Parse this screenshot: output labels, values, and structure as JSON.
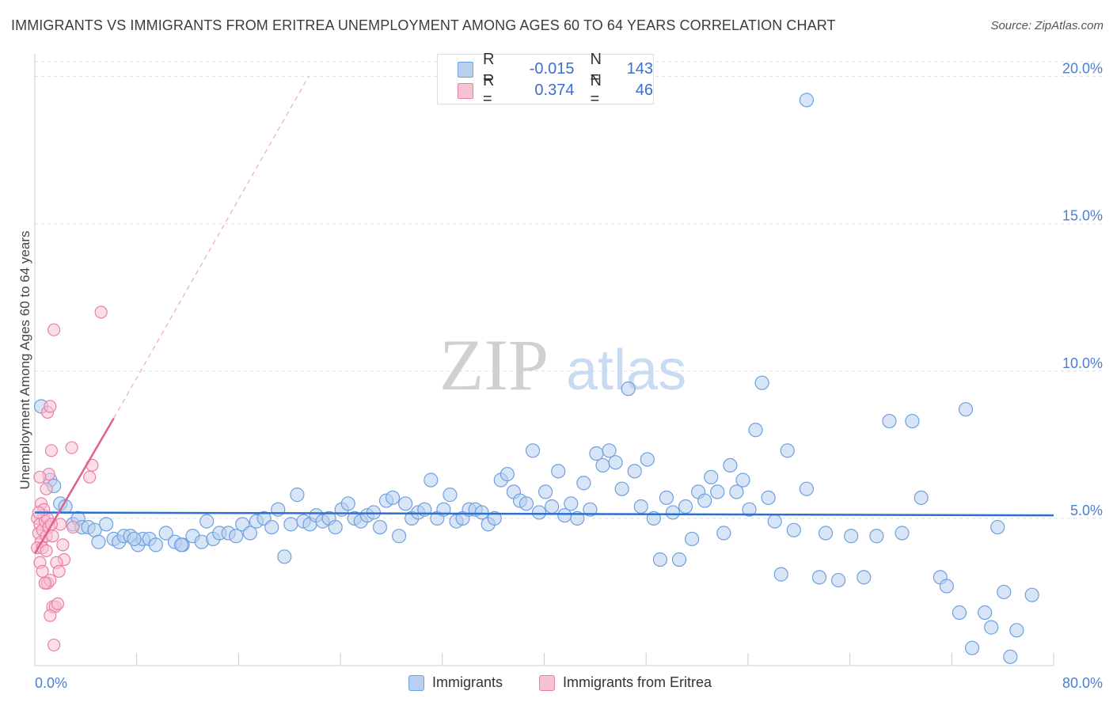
{
  "title": "IMMIGRANTS VS IMMIGRANTS FROM ERITREA UNEMPLOYMENT AMONG AGES 60 TO 64 YEARS CORRELATION CHART",
  "source": "Source: ZipAtlas.com",
  "watermark": {
    "zip": "ZIP",
    "atlas": "atlas"
  },
  "legend": {
    "r_label": "R =",
    "n_label": "N =",
    "series1": {
      "r": "-0.015",
      "n": "143"
    },
    "series2": {
      "r": "0.374",
      "n": "46"
    }
  },
  "bottom_legend": {
    "series1": "Immigrants",
    "series2": "Immigrants from Eritrea"
  },
  "colors": {
    "blue": "#6fa0e0",
    "blue_fill": "#b8d0f0",
    "blue_line": "#2f6fcf",
    "pink": "#ea7fa5",
    "pink_fill": "#f7c3d4",
    "pink_line": "#e0608e",
    "axis_text": "#4a7fd4"
  },
  "chart_data": {
    "type": "scatter",
    "title": "IMMIGRANTS VS IMMIGRANTS FROM ERITREA UNEMPLOYMENT AMONG AGES 60 TO 64 YEARS CORRELATION CHART",
    "xlabel": "",
    "ylabel": "Unemployment Among Ages 60 to 64 years",
    "xlim": [
      0,
      80
    ],
    "ylim": [
      0,
      20.5
    ],
    "x_tick_labels": [
      "0.0%",
      "80.0%"
    ],
    "y_ticks": [
      5,
      10,
      15,
      20
    ],
    "y_tick_labels": [
      "5.0%",
      "10.0%",
      "15.0%",
      "20.0%"
    ],
    "series": [
      {
        "name": "Immigrants",
        "r": -0.015,
        "n": 143,
        "trend": {
          "x": [
            0,
            80
          ],
          "y": [
            5.2,
            5.1
          ]
        },
        "points": [
          [
            0.5,
            8.8
          ],
          [
            1.2,
            6.3
          ],
          [
            1.5,
            6.1
          ],
          [
            2.0,
            5.5
          ],
          [
            2.4,
            5.4
          ],
          [
            3.0,
            4.8
          ],
          [
            3.4,
            5.0
          ],
          [
            3.7,
            4.7
          ],
          [
            4.2,
            4.7
          ],
          [
            4.7,
            4.6
          ],
          [
            5.0,
            4.2
          ],
          [
            5.6,
            4.8
          ],
          [
            6.2,
            4.3
          ],
          [
            6.6,
            4.2
          ],
          [
            7.0,
            4.4
          ],
          [
            7.5,
            4.4
          ],
          [
            8.1,
            4.1
          ],
          [
            8.5,
            4.3
          ],
          [
            9.0,
            4.3
          ],
          [
            9.5,
            4.1
          ],
          [
            10.3,
            4.5
          ],
          [
            11.0,
            4.2
          ],
          [
            11.6,
            4.1
          ],
          [
            12.4,
            4.4
          ],
          [
            13.1,
            4.2
          ],
          [
            13.5,
            4.9
          ],
          [
            14.0,
            4.3
          ],
          [
            14.5,
            4.5
          ],
          [
            15.2,
            4.5
          ],
          [
            15.8,
            4.4
          ],
          [
            16.3,
            4.8
          ],
          [
            16.9,
            4.5
          ],
          [
            17.4,
            4.9
          ],
          [
            18.0,
            5.0
          ],
          [
            18.6,
            4.7
          ],
          [
            19.1,
            5.3
          ],
          [
            19.6,
            3.7
          ],
          [
            20.1,
            4.8
          ],
          [
            20.6,
            5.8
          ],
          [
            21.1,
            4.9
          ],
          [
            21.6,
            4.8
          ],
          [
            22.1,
            5.1
          ],
          [
            22.6,
            4.9
          ],
          [
            23.1,
            5.0
          ],
          [
            23.6,
            4.7
          ],
          [
            24.1,
            5.3
          ],
          [
            24.6,
            5.5
          ],
          [
            25.1,
            5.0
          ],
          [
            25.6,
            4.9
          ],
          [
            26.1,
            5.1
          ],
          [
            26.6,
            5.2
          ],
          [
            27.1,
            4.7
          ],
          [
            27.6,
            5.6
          ],
          [
            28.1,
            5.7
          ],
          [
            28.6,
            4.4
          ],
          [
            29.1,
            5.5
          ],
          [
            29.6,
            5.0
          ],
          [
            30.1,
            5.2
          ],
          [
            30.6,
            5.3
          ],
          [
            31.1,
            6.3
          ],
          [
            31.6,
            5.0
          ],
          [
            32.1,
            5.3
          ],
          [
            32.6,
            5.8
          ],
          [
            33.1,
            4.9
          ],
          [
            33.6,
            5.0
          ],
          [
            34.1,
            5.3
          ],
          [
            34.6,
            5.3
          ],
          [
            35.1,
            5.2
          ],
          [
            35.6,
            4.8
          ],
          [
            36.1,
            5.0
          ],
          [
            36.6,
            6.3
          ],
          [
            37.1,
            6.5
          ],
          [
            37.6,
            5.9
          ],
          [
            38.1,
            5.6
          ],
          [
            38.6,
            5.5
          ],
          [
            39.1,
            7.3
          ],
          [
            39.6,
            5.2
          ],
          [
            40.1,
            5.9
          ],
          [
            40.6,
            5.4
          ],
          [
            41.1,
            6.6
          ],
          [
            41.6,
            5.1
          ],
          [
            42.1,
            5.5
          ],
          [
            42.6,
            5.0
          ],
          [
            43.1,
            6.2
          ],
          [
            43.6,
            5.3
          ],
          [
            44.1,
            7.2
          ],
          [
            44.6,
            6.8
          ],
          [
            45.1,
            7.3
          ],
          [
            45.6,
            6.9
          ],
          [
            46.1,
            6.0
          ],
          [
            46.6,
            9.4
          ],
          [
            47.1,
            6.6
          ],
          [
            47.6,
            5.4
          ],
          [
            48.1,
            7.0
          ],
          [
            48.6,
            5.0
          ],
          [
            49.1,
            3.6
          ],
          [
            49.6,
            5.7
          ],
          [
            50.1,
            5.2
          ],
          [
            50.6,
            3.6
          ],
          [
            51.1,
            5.4
          ],
          [
            51.6,
            4.3
          ],
          [
            52.1,
            5.9
          ],
          [
            52.6,
            5.6
          ],
          [
            53.1,
            6.4
          ],
          [
            53.6,
            5.9
          ],
          [
            54.1,
            4.5
          ],
          [
            54.6,
            6.8
          ],
          [
            55.1,
            5.9
          ],
          [
            55.6,
            6.3
          ],
          [
            56.1,
            5.3
          ],
          [
            56.6,
            8.0
          ],
          [
            57.1,
            9.6
          ],
          [
            57.6,
            5.7
          ],
          [
            58.1,
            4.9
          ],
          [
            58.6,
            3.1
          ],
          [
            59.1,
            7.3
          ],
          [
            59.6,
            4.6
          ],
          [
            60.6,
            19.2
          ],
          [
            60.6,
            6.0
          ],
          [
            61.6,
            3.0
          ],
          [
            62.1,
            4.5
          ],
          [
            63.1,
            2.9
          ],
          [
            64.1,
            4.4
          ],
          [
            65.1,
            3.0
          ],
          [
            66.1,
            4.4
          ],
          [
            67.1,
            8.3
          ],
          [
            68.1,
            4.5
          ],
          [
            68.9,
            8.3
          ],
          [
            69.6,
            5.7
          ],
          [
            71.1,
            3.0
          ],
          [
            71.6,
            2.7
          ],
          [
            72.6,
            1.8
          ],
          [
            73.1,
            8.7
          ],
          [
            73.6,
            0.6
          ],
          [
            74.6,
            1.8
          ],
          [
            75.1,
            1.3
          ],
          [
            75.6,
            4.7
          ],
          [
            76.1,
            2.5
          ],
          [
            76.6,
            0.3
          ],
          [
            77.1,
            1.2
          ],
          [
            78.3,
            2.4
          ],
          [
            11.5,
            4.1
          ],
          [
            7.8,
            4.3
          ]
        ]
      },
      {
        "name": "Immigrants from Eritrea",
        "r": 0.374,
        "n": 46,
        "trend": {
          "x": [
            0,
            6.2
          ],
          "y": [
            3.8,
            8.4
          ]
        },
        "trend_ext": {
          "x": [
            6.2,
            21.5
          ],
          "y": [
            8.4,
            20.0
          ]
        },
        "points": [
          [
            0.2,
            5.0
          ],
          [
            0.3,
            4.5
          ],
          [
            0.4,
            4.8
          ],
          [
            0.5,
            4.2
          ],
          [
            0.6,
            4.6
          ],
          [
            0.7,
            5.1
          ],
          [
            0.8,
            4.9
          ],
          [
            0.9,
            4.4
          ],
          [
            1.0,
            5.0
          ],
          [
            1.1,
            4.7
          ],
          [
            0.2,
            4.0
          ],
          [
            0.4,
            3.5
          ],
          [
            0.6,
            3.2
          ],
          [
            0.8,
            2.8
          ],
          [
            1.0,
            2.8
          ],
          [
            1.2,
            2.9
          ],
          [
            1.4,
            2.0
          ],
          [
            1.6,
            2.0
          ],
          [
            1.8,
            2.1
          ],
          [
            1.2,
            1.7
          ],
          [
            1.5,
            0.7
          ],
          [
            0.5,
            5.5
          ],
          [
            0.7,
            5.3
          ],
          [
            0.9,
            6.0
          ],
          [
            1.1,
            6.5
          ],
          [
            1.3,
            7.3
          ],
          [
            1.0,
            8.6
          ],
          [
            1.2,
            8.8
          ],
          [
            1.5,
            11.4
          ],
          [
            5.2,
            12.0
          ],
          [
            2.0,
            4.8
          ],
          [
            2.2,
            4.1
          ],
          [
            2.3,
            3.6
          ],
          [
            1.7,
            3.5
          ],
          [
            1.4,
            4.4
          ],
          [
            0.3,
            5.2
          ],
          [
            0.6,
            4.0
          ],
          [
            0.9,
            3.9
          ],
          [
            2.9,
            7.4
          ],
          [
            4.3,
            6.4
          ],
          [
            4.5,
            6.8
          ],
          [
            3.0,
            4.7
          ],
          [
            0.4,
            6.4
          ],
          [
            1.9,
            3.2
          ],
          [
            0.8,
            2.8
          ],
          [
            1.3,
            4.8
          ]
        ]
      }
    ]
  }
}
